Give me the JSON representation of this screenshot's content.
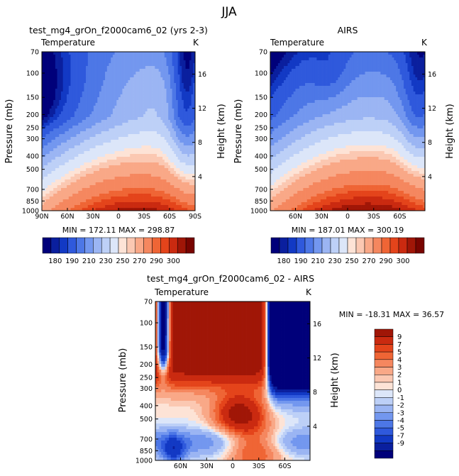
{
  "chart_data": {
    "type": "heatmap",
    "season": "JJA",
    "colors": {
      "temp_ramp": [
        "#00007a",
        "#0a1f9e",
        "#1239c4",
        "#2f59dc",
        "#4d77e6",
        "#7397ef",
        "#9bb5f3",
        "#bdd0f7",
        "#dce6f9",
        "#fde3d6",
        "#fbc8b2",
        "#f9a887",
        "#f5875f",
        "#ef6535",
        "#e4441b",
        "#ca2a10",
        "#a01607",
        "#780400"
      ],
      "diff_ramp": [
        "#00007a",
        "#0a1f9e",
        "#1239c4",
        "#2f59dc",
        "#4d77e6",
        "#7397ef",
        "#9bb5f3",
        "#bdd0f7",
        "#dce6f9",
        "#fde3d6",
        "#fbc8b2",
        "#f9a887",
        "#f5875f",
        "#ef6535",
        "#e4441b",
        "#ca2a10",
        "#a01607",
        "#780400"
      ]
    },
    "panels": [
      {
        "id": "model",
        "title": "test_mg4_grOn_f2000cam6_02 (yrs 2-3)",
        "variable": "Temperature",
        "units": "K",
        "ylabel": "Pressure (mb)",
        "y2label": "Height (km)",
        "pressure_ticks": [
          "70",
          "100",
          "150",
          "200",
          "250",
          "300",
          "400",
          "500",
          "700",
          "850",
          "1000"
        ],
        "height_ticks": [
          "16",
          "12",
          "8",
          "4"
        ],
        "lat_ticks": [
          "90N",
          "60N",
          "30N",
          "0",
          "30S",
          "60S",
          "90S"
        ],
        "stats": "MIN = 172.11   MAX = 298.87",
        "colorbar_labels": [
          "180",
          "190",
          "210",
          "230",
          "250",
          "270",
          "290",
          "300"
        ],
        "lat_range": [
          90,
          -90
        ]
      },
      {
        "id": "obs",
        "title": "AIRS",
        "variable": "Temperature",
        "units": "K",
        "ylabel": "Pressure (mb)",
        "y2label": "Height (km)",
        "pressure_ticks": [
          "70",
          "100",
          "150",
          "200",
          "250",
          "300",
          "400",
          "500",
          "700",
          "850",
          "1000"
        ],
        "height_ticks": [
          "16",
          "12",
          "8",
          "4"
        ],
        "lat_ticks": [
          "60N",
          "30N",
          "0",
          "30S",
          "60S"
        ],
        "stats": "MIN = 187.01   MAX = 300.19",
        "colorbar_labels": [
          "180",
          "190",
          "210",
          "230",
          "250",
          "270",
          "290",
          "300"
        ],
        "lat_range": [
          89,
          -89
        ]
      },
      {
        "id": "diff",
        "title": "test_mg4_grOn_f2000cam6_02 - AIRS",
        "variable": "Temperature",
        "units": "K",
        "ylabel": "Pressure (mb)",
        "y2label": "Height (km)",
        "pressure_ticks": [
          "70",
          "100",
          "150",
          "200",
          "250",
          "300",
          "400",
          "500",
          "700",
          "850",
          "1000"
        ],
        "height_ticks": [
          "16",
          "12",
          "8",
          "4"
        ],
        "lat_ticks": [
          "60N",
          "30N",
          "0",
          "30S",
          "60S"
        ],
        "stats": "MIN = -18.31   MAX =  36.57",
        "colorbar_labels": [
          "9",
          "7",
          "5",
          "4",
          "3",
          "2",
          "1",
          "0",
          "-1",
          "-2",
          "-3",
          "-4",
          "-5",
          "-7",
          "-9"
        ],
        "lat_range": [
          89,
          -89
        ]
      }
    ]
  }
}
